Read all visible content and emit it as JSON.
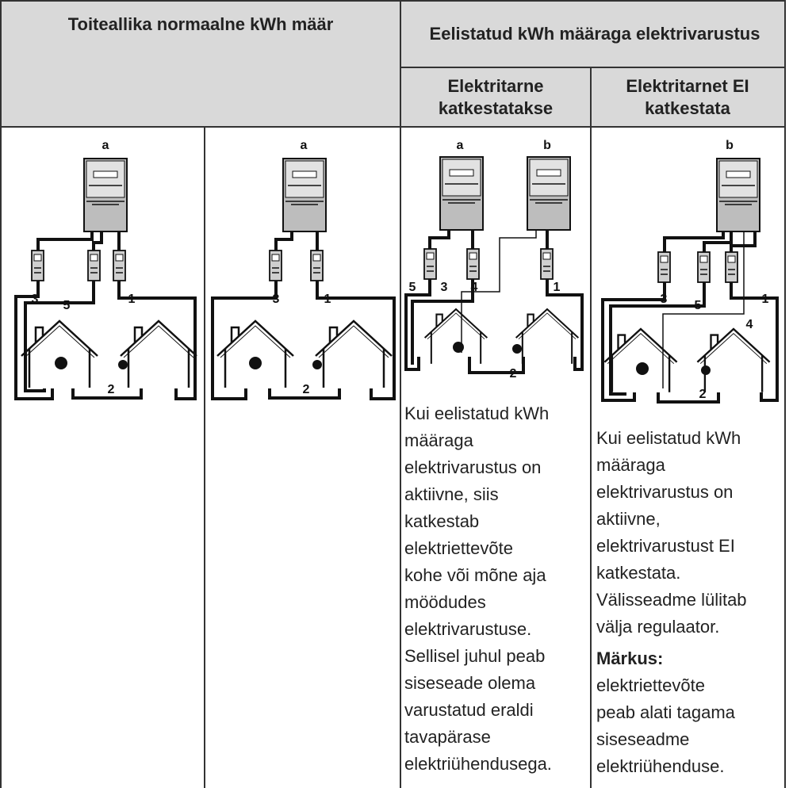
{
  "header": {
    "title_left": "Toiteallika normaalne kWh määr",
    "title_right": "Eelistatud kWh määraga elektrivarustus",
    "sub_left": "Elektritarne katkestatakse",
    "sub_right": "Elektritarnet EI katkestata"
  },
  "diagrams": [
    {
      "labels": [
        "a",
        "3",
        "5",
        "1",
        "2"
      ]
    },
    {
      "labels": [
        "a",
        "3",
        "1",
        "2"
      ]
    },
    {
      "labels": [
        "a",
        "b",
        "5",
        "3",
        "4",
        "1",
        "2"
      ]
    },
    {
      "labels": [
        "b",
        "3",
        "5",
        "1",
        "4",
        "2"
      ]
    }
  ],
  "cells": [
    {
      "lines": [
        "Kui eelistatud kWh",
        "määraga",
        "elektrivarustus on",
        "aktiivne, siis",
        "katkestab",
        "elektriettevõte",
        "kohe või mõne aja",
        "möödudes",
        "elektrivarustuse.",
        "Sellisel juhul peab",
        "siseseade olema",
        "varustatud eraldi",
        "tavapärase",
        "elektriühendusega."
      ]
    },
    {
      "lines": [
        "Kui eelistatud kWh",
        "määraga",
        "elektrivarustus on",
        "aktiivne,",
        "elektrivarustust EI",
        "katkestata.",
        "Välisseadme lülitab",
        "välja regulaator."
      ],
      "note_label": "Märkus:",
      "note_lines": [
        "elektriettevõte",
        "peab alati tagama",
        "siseseadme",
        "elektriühenduse."
      ]
    }
  ]
}
